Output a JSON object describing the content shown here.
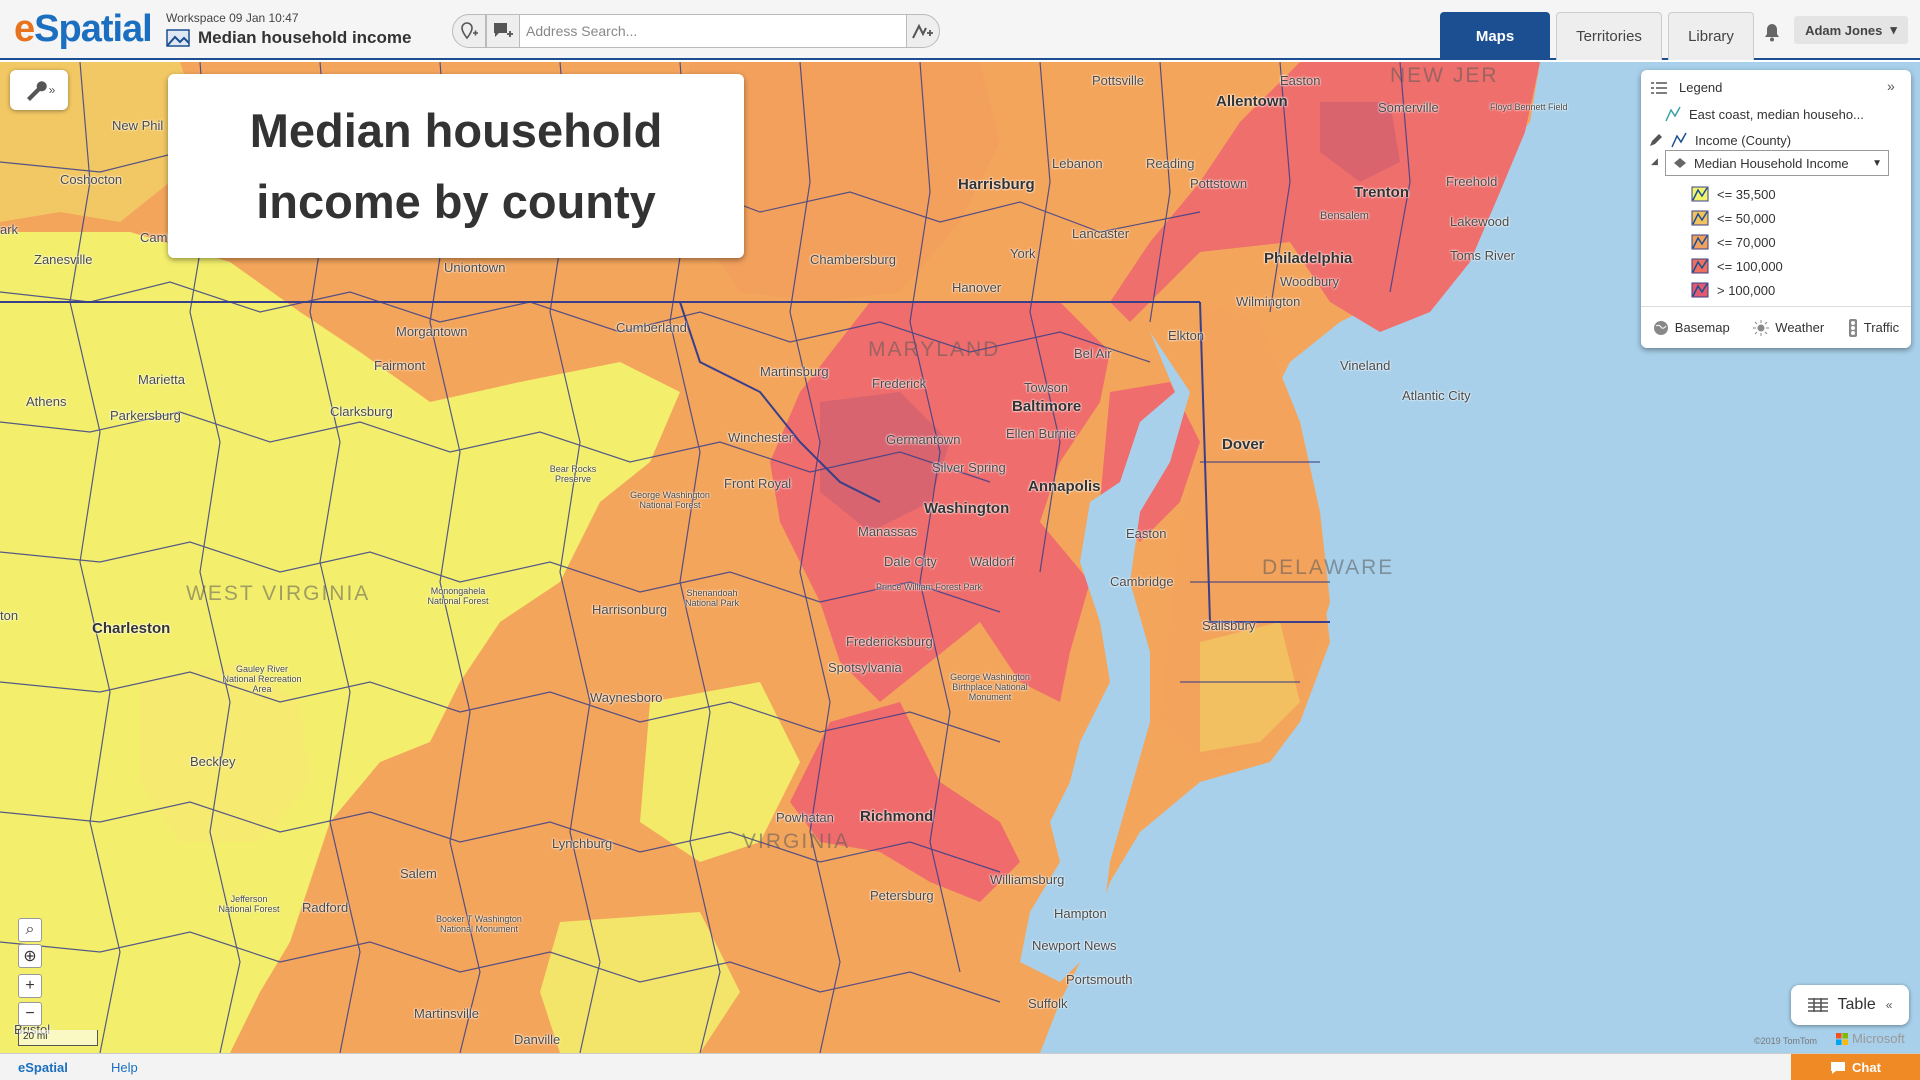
{
  "header": {
    "logo_prefix": "e",
    "logo_rest": "Spatial",
    "workspace_meta": "Workspace 09 Jan 10:47",
    "workspace_title": "Median household income",
    "search_placeholder": "Address Search...",
    "tabs": [
      {
        "label": "Maps",
        "active": true
      },
      {
        "label": "Territories",
        "active": false
      },
      {
        "label": "Library",
        "active": false
      }
    ],
    "user_name": "Adam Jones"
  },
  "map": {
    "title_card": "Median household income by county",
    "state_labels": [
      "NEW JER",
      "MARYLAND",
      "WEST VIRGINIA",
      "VIRGINIA",
      "DELAWARE"
    ],
    "places": [
      "Pottsville",
      "Allentown",
      "Easton",
      "Somerville",
      "Floyd Bennett Field",
      "New Phil",
      "Coshocton",
      "Cambridge",
      "Zanesville",
      "ark",
      "Harrisburg",
      "Lebanon",
      "Reading",
      "Pottstown",
      "Trenton",
      "Freehold",
      "Lancaster",
      "York",
      "Chambersburg",
      "Hanover",
      "Uniontown",
      "Philadelphia",
      "Bensalem",
      "Woodbury",
      "Lakewood",
      "Toms River",
      "Wilmington",
      "Elkton",
      "Vineland",
      "Atlantic City",
      "Morgantown",
      "Cumberland",
      "Fairmont",
      "Marietta",
      "Athens",
      "Parkersburg",
      "Clarksburg",
      "Martinsburg",
      "Frederick",
      "Towson",
      "Bel Air",
      "Baltimore",
      "Germantown",
      "Ellen Burnie",
      "Silver Spring",
      "Washington",
      "Annapolis",
      "Winchester",
      "Front Royal",
      "Dover",
      "Manassas",
      "Easton",
      "Dale City",
      "Waldorf",
      "Prince William Forest Park",
      "Cambridge",
      "Salisbury",
      "Charleston",
      "Harrisonburg",
      "Fredericksburg",
      "Spotsylvania",
      "Waynesboro",
      "Beckley",
      "Powhatan",
      "Richmond",
      "Lynchburg",
      "Salem",
      "Radford",
      "Petersburg",
      "Williamsburg",
      "Hampton",
      "Newport News",
      "Portsmouth",
      "Suffolk",
      "Martinsville",
      "Danville",
      "Bristol",
      "ton",
      "George Washington National Forest",
      "Monongahela National Forest",
      "Shenandoah National Park",
      "Gauley River National Recreation Area",
      "Jefferson National Forest",
      "Booker T Washington National Monument",
      "Bear Rocks Preserve",
      "George Washington Birthplace National Monument"
    ]
  },
  "legend": {
    "title": "Legend",
    "layer_group": "East coast, median househo...",
    "layer": "Income (County)",
    "field": "Median Household Income",
    "classes": [
      {
        "label": "<= 35,500",
        "color": "#f3f46c"
      },
      {
        "label": "<= 50,000",
        "color": "#f2c25e"
      },
      {
        "label": "<= 70,000",
        "color": "#f1a05d"
      },
      {
        "label": "<= 100,000",
        "color": "#ee7060"
      },
      {
        "label": "> 100,000",
        "color": "#e05a70"
      }
    ],
    "footer": [
      "Basemap",
      "Weather",
      "Traffic"
    ]
  },
  "controls": {
    "scale_label": "20 mi",
    "table_label": "Table",
    "attribution": "©2019 TomTom",
    "ms_label": "Microsoft"
  },
  "footer": {
    "logo": "eSpatial",
    "help": "Help",
    "chat": "Chat"
  },
  "colors": {
    "brand_blue": "#1b4f91",
    "brand_orange": "#f08a24",
    "water": "#a8d0ea",
    "county_border": "#3a3f8a"
  }
}
